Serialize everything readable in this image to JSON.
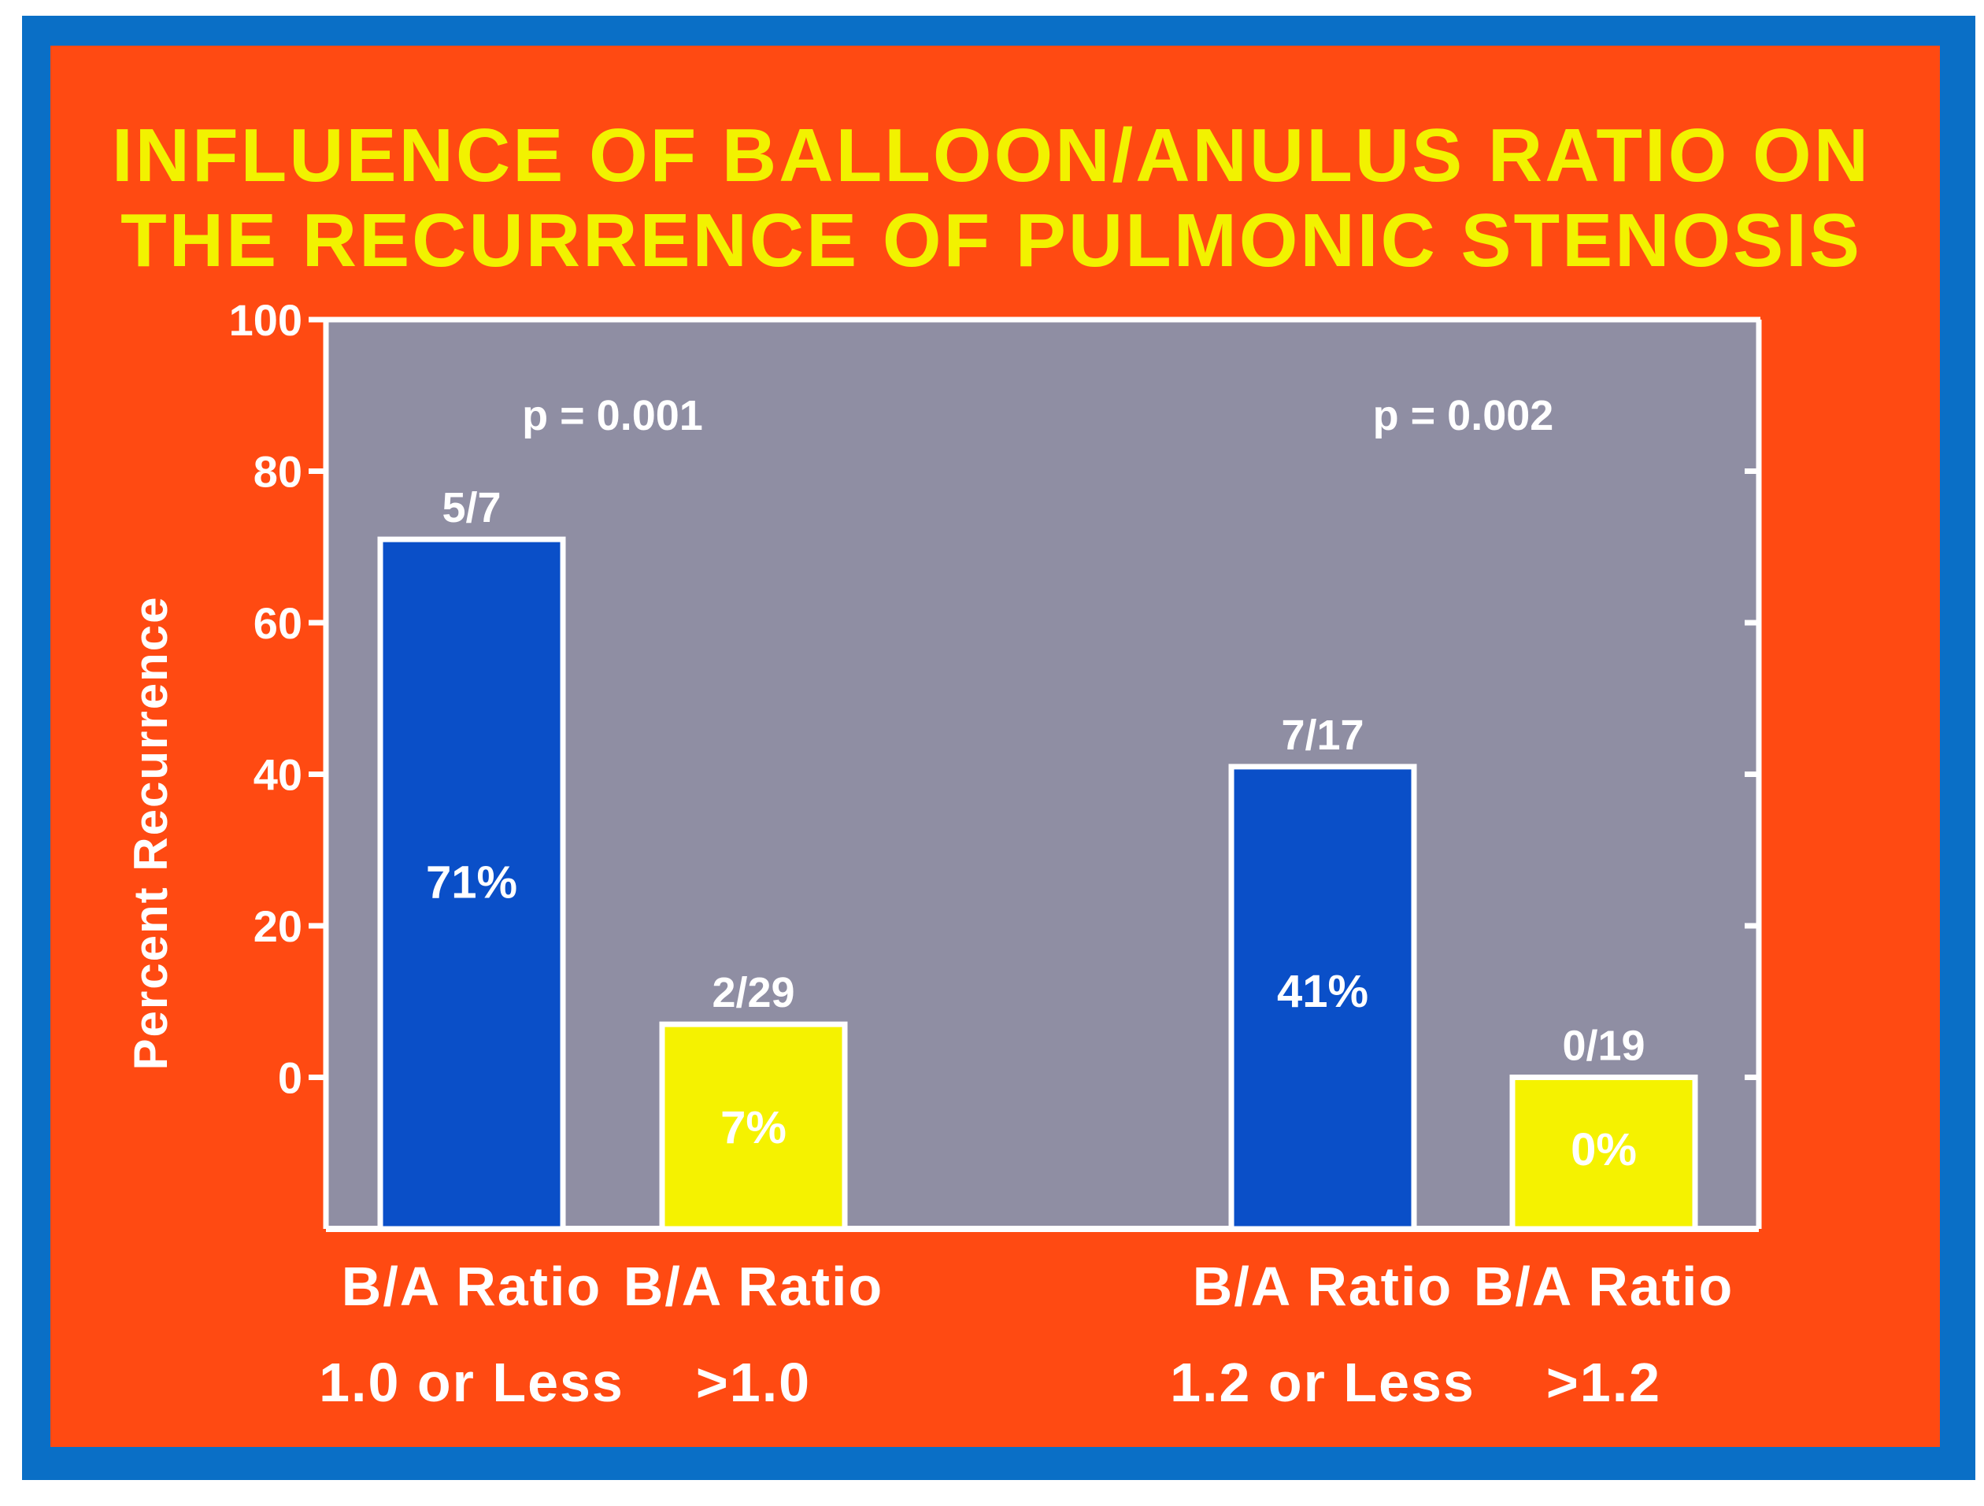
{
  "chart_data": {
    "type": "bar",
    "title_lines": [
      "INFLUENCE OF BALLOON/ANULUS RATIO ON",
      "THE RECURRENCE OF PULMONIC STENOSIS"
    ],
    "ylabel": "Percent Recurrence",
    "yticks": [
      0,
      20,
      40,
      60,
      80,
      100
    ],
    "ylim": [
      -20,
      100
    ],
    "grid": false,
    "groups": [
      {
        "p_value": "p = 0.001",
        "bars": [
          {
            "label_lines": [
              "B/A Ratio",
              "1.0 or Less"
            ],
            "value": 71,
            "fraction": "5/7",
            "percent": "71%",
            "color": "#0a4fc8"
          },
          {
            "label_lines": [
              "B/A Ratio",
              ">1.0"
            ],
            "value": 7,
            "fraction": "2/29",
            "percent": "7%",
            "color": "#f5f200"
          }
        ]
      },
      {
        "p_value": "p = 0.002",
        "bars": [
          {
            "label_lines": [
              "B/A Ratio",
              "1.2 or Less"
            ],
            "value": 41,
            "fraction": "7/17",
            "percent": "41%",
            "color": "#0a4fc8"
          },
          {
            "label_lines": [
              "B/A Ratio",
              ">1.2"
            ],
            "value": 0,
            "fraction": "0/19",
            "percent": "0%",
            "color": "#f5f200"
          }
        ]
      }
    ]
  },
  "colors": {
    "frame": "#0a6fc6",
    "slide_background": "#ff4a12",
    "plot_background": "#8f8ea3",
    "title_text": "#f2f200",
    "axis_and_labels": "#ffffff"
  }
}
